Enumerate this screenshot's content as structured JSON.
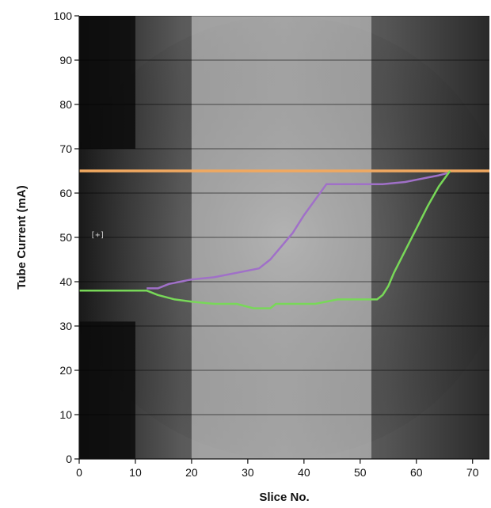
{
  "chart_data": {
    "type": "line",
    "xlabel": "Slice No.",
    "ylabel": "Tube Current (mA)",
    "xlim": [
      0,
      73
    ],
    "ylim": [
      0,
      100
    ],
    "x_ticks": [
      0,
      10,
      20,
      30,
      40,
      50,
      60,
      70
    ],
    "y_ticks": [
      0,
      10,
      20,
      30,
      40,
      50,
      60,
      70,
      80,
      90,
      100
    ],
    "grid": "horizontal",
    "background": "grayscale CT scout image with brighter band from slice 20 to 52",
    "highlight_band": [
      20,
      52
    ],
    "annotation": "[+]",
    "series": [
      {
        "color": "#f0a860",
        "x": [
          0,
          73
        ],
        "y": [
          65,
          65
        ]
      },
      {
        "color": "#a070c8",
        "x": [
          12,
          14,
          16,
          18,
          20,
          24,
          28,
          32,
          34,
          36,
          38,
          40,
          42,
          44,
          46,
          50,
          54,
          58,
          60,
          62,
          64,
          65.5
        ],
        "y": [
          38.5,
          38.5,
          39.5,
          40,
          40.5,
          41,
          42,
          43,
          45,
          48,
          51,
          55,
          58.5,
          62,
          62,
          62,
          62,
          62.5,
          63,
          63.5,
          64,
          64.5
        ]
      },
      {
        "color": "#78d858",
        "x": [
          0,
          12,
          14,
          17,
          20,
          24,
          28,
          31,
          34,
          35,
          38,
          42,
          46,
          50,
          53,
          54,
          55,
          56,
          58,
          60,
          62,
          64,
          66
        ],
        "y": [
          38,
          38,
          37,
          36,
          35.5,
          35,
          35,
          34,
          34,
          35,
          35,
          35,
          36,
          36,
          36,
          37,
          39,
          42,
          47,
          52,
          57,
          61.5,
          65
        ]
      }
    ]
  }
}
